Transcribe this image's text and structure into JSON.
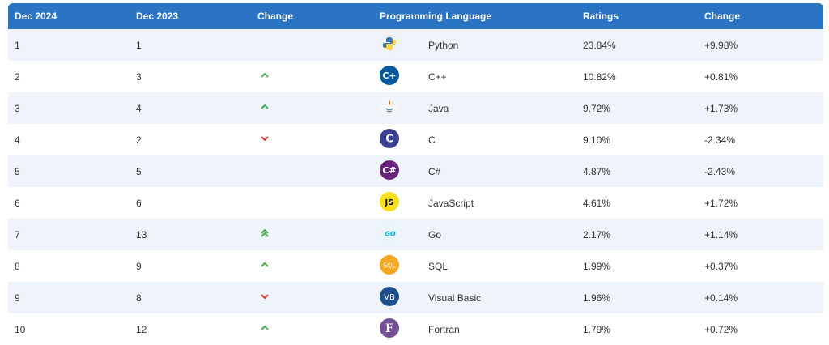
{
  "headers": [
    "Dec 2024",
    "Dec 2023",
    "Change",
    "Programming Language",
    "",
    "Ratings",
    "Change"
  ],
  "rows": [
    {
      "rank": "1",
      "prev": "1",
      "trend": "none",
      "icon": "python-logo-icon",
      "lang": "Python",
      "rating": "23.84%",
      "change": "+9.98%"
    },
    {
      "rank": "2",
      "prev": "3",
      "trend": "up",
      "icon": "cpp-logo-icon",
      "lang": "C++",
      "rating": "10.82%",
      "change": "+0.81%"
    },
    {
      "rank": "3",
      "prev": "4",
      "trend": "up",
      "icon": "java-logo-icon",
      "lang": "Java",
      "rating": "9.72%",
      "change": "+1.73%"
    },
    {
      "rank": "4",
      "prev": "2",
      "trend": "down",
      "icon": "c-logo-icon",
      "lang": "C",
      "rating": "9.10%",
      "change": "-2.34%"
    },
    {
      "rank": "5",
      "prev": "5",
      "trend": "none",
      "icon": "csharp-logo-icon",
      "lang": "C#",
      "rating": "4.87%",
      "change": "-2.43%"
    },
    {
      "rank": "6",
      "prev": "6",
      "trend": "none",
      "icon": "javascript-logo-icon",
      "lang": "JavaScript",
      "rating": "4.61%",
      "change": "+1.72%"
    },
    {
      "rank": "7",
      "prev": "13",
      "trend": "double-up",
      "icon": "go-logo-icon",
      "lang": "Go",
      "rating": "2.17%",
      "change": "+1.14%"
    },
    {
      "rank": "8",
      "prev": "9",
      "trend": "up",
      "icon": "sql-logo-icon",
      "lang": "SQL",
      "rating": "1.99%",
      "change": "+0.37%"
    },
    {
      "rank": "9",
      "prev": "8",
      "trend": "down",
      "icon": "visual-basic-logo-icon",
      "lang": "Visual Basic",
      "rating": "1.96%",
      "change": "+0.14%"
    },
    {
      "rank": "10",
      "prev": "12",
      "trend": "up",
      "icon": "fortran-logo-icon",
      "lang": "Fortran",
      "rating": "1.79%",
      "change": "+0.72%"
    }
  ],
  "logo_text": {
    "js": "JS",
    "go": "GO",
    "sql": "SQL",
    "vb": "VB",
    "f": "F"
  },
  "colors": {
    "header_bg": "#2b73c3",
    "row_alt": "#eef4fa",
    "up": "#4caf50",
    "down": "#e53935"
  }
}
